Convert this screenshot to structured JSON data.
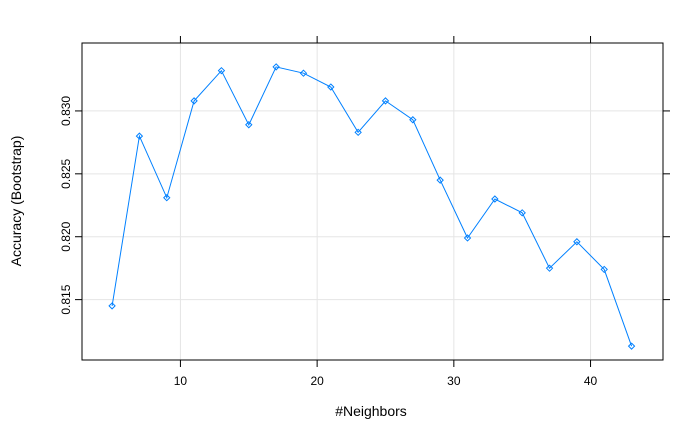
{
  "chart_data": {
    "type": "line",
    "title": "",
    "xlabel": "#Neighbors",
    "ylabel": "Accuracy (Bootstrap)",
    "xlim": [
      2.8,
      45.3
    ],
    "ylim": [
      0.8102,
      0.8354
    ],
    "x_ticks": [
      10,
      20,
      30,
      40
    ],
    "x_tick_labels": [
      "10",
      "20",
      "30",
      "40"
    ],
    "y_ticks": [
      0.815,
      0.82,
      0.825,
      0.83
    ],
    "y_tick_labels": [
      "0.815",
      "0.820",
      "0.825",
      "0.830"
    ],
    "grid": true,
    "legend": "none",
    "colors": {
      "series": "#0080ff",
      "grid": "#e5e5e5",
      "axis": "#000000"
    },
    "marker": "diamond-open",
    "series": [
      {
        "x": [
          5,
          7,
          9,
          11,
          13,
          15,
          17,
          19,
          21,
          23,
          25,
          27,
          29,
          31,
          33,
          35,
          37,
          39,
          41,
          43
        ],
        "values": [
          0.8145,
          0.828,
          0.8231,
          0.8308,
          0.8332,
          0.8289,
          0.8335,
          0.833,
          0.8319,
          0.8283,
          0.8308,
          0.8293,
          0.8245,
          0.8199,
          0.823,
          0.8219,
          0.8175,
          0.8196,
          0.8174,
          0.8113
        ]
      }
    ]
  }
}
